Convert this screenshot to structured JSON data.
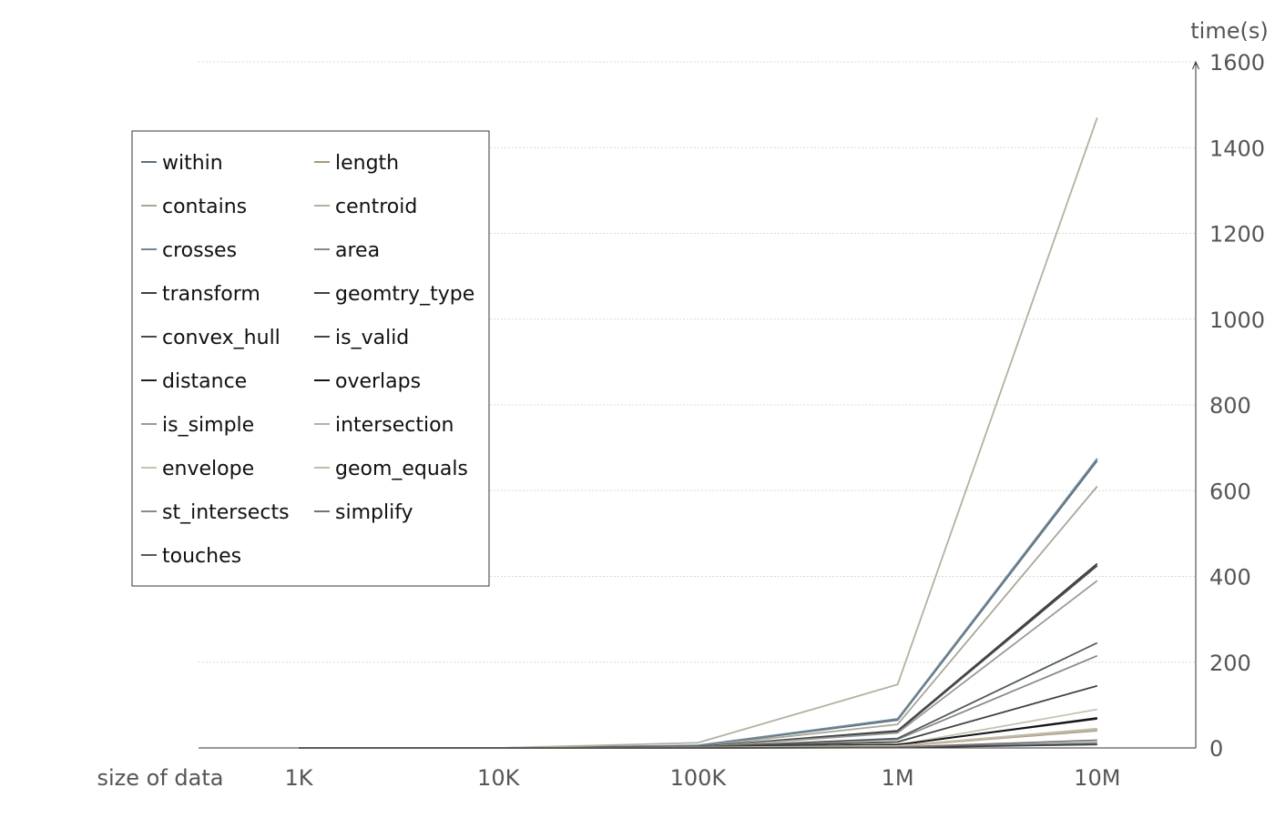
{
  "chart_data": {
    "type": "line",
    "xlabel": "size of data",
    "ylabel": "time(s)",
    "categories": [
      "1K",
      "10K",
      "100K",
      "1M",
      "10M"
    ],
    "ylim": [
      0,
      1600
    ],
    "yticks": [
      0,
      200,
      400,
      600,
      800,
      1000,
      1200,
      1400,
      1600
    ],
    "grid": "horizontal dotted",
    "legend_position": "top-left",
    "series": [
      {
        "name": "within",
        "color": "#5f6f78",
        "values": [
          0,
          0,
          5,
          65,
          670
        ]
      },
      {
        "name": "contains",
        "color": "#a8a89a",
        "values": [
          0,
          0,
          4,
          55,
          610
        ]
      },
      {
        "name": "crosses",
        "color": "#6d8799",
        "values": [
          0,
          0,
          6,
          68,
          675
        ]
      },
      {
        "name": "transform",
        "color": "#3a3f44",
        "values": [
          0,
          0,
          3,
          40,
          430
        ]
      },
      {
        "name": "convex_hull",
        "color": "#4a4a45",
        "values": [
          0,
          0,
          3,
          38,
          425
        ]
      },
      {
        "name": "distance",
        "color": "#1c2024",
        "values": [
          0,
          0,
          1,
          8,
          68
        ]
      },
      {
        "name": "is_simple",
        "color": "#9a9a9a",
        "values": [
          0,
          0,
          2,
          35,
          390
        ]
      },
      {
        "name": "envelope",
        "color": "#c4c4b4",
        "values": [
          0,
          0,
          1,
          7,
          90
        ]
      },
      {
        "name": "st_intersects",
        "color": "#8a8a88",
        "values": [
          0,
          0,
          2,
          20,
          215
        ]
      },
      {
        "name": "touches",
        "color": "#505a60",
        "values": [
          0,
          0,
          2,
          22,
          245
        ]
      },
      {
        "name": "length",
        "color": "#a89a80",
        "values": [
          0,
          0,
          1,
          4,
          40
        ]
      },
      {
        "name": "centroid",
        "color": "#b8b09c",
        "values": [
          0,
          0,
          1,
          4,
          42
        ]
      },
      {
        "name": "area",
        "color": "#7f8c92",
        "values": [
          0,
          0,
          0,
          1,
          12
        ]
      },
      {
        "name": "geomtry_type",
        "color": "#3d4246",
        "values": [
          0,
          0,
          0,
          1,
          8
        ]
      },
      {
        "name": "is_valid",
        "color": "#40453f",
        "values": [
          0,
          0,
          1,
          14,
          145
        ]
      },
      {
        "name": "overlaps",
        "color": "#141414",
        "values": [
          0,
          0,
          1,
          7,
          70
        ]
      },
      {
        "name": "intersection",
        "color": "#b4b0a0",
        "values": [
          0,
          0,
          12,
          148,
          1470
        ]
      },
      {
        "name": "geom_equals",
        "color": "#c0bca8",
        "values": [
          0,
          0,
          1,
          5,
          45
        ]
      },
      {
        "name": "simplify",
        "color": "#7a7470",
        "values": [
          0,
          0,
          0,
          2,
          18
        ]
      }
    ]
  }
}
